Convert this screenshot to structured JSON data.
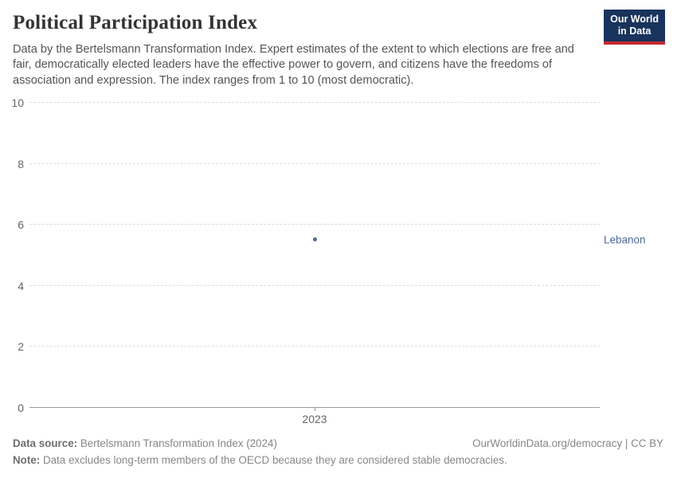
{
  "header": {
    "title": "Political Participation Index",
    "subtitle": "Data by the Bertelsmann Transformation Index. Expert estimates of the extent to which elections are free and fair, democratically elected leaders have the effective power to govern, and citizens have the freedoms of association and expression. The index ranges from 1 to 10 (most democratic).",
    "logo": {
      "line1": "Our World",
      "line2": "in Data",
      "background_color": "#18345d",
      "accent_color": "#c32a33"
    }
  },
  "chart_data": {
    "type": "scatter",
    "title": "Political Participation Index",
    "categories": [
      "2023"
    ],
    "series": [
      {
        "name": "Lebanon",
        "values": [
          5.5
        ],
        "color": "#4c6a9c"
      }
    ],
    "xlabel": "",
    "ylabel": "",
    "ylim": [
      0,
      10
    ],
    "yticks": [
      0,
      2,
      4,
      6,
      8,
      10
    ],
    "xticks": [
      "2023"
    ],
    "grid": "horizontal-dashed",
    "legend_position": "right-of-point",
    "axis_color": "#999999",
    "gridline_color": "#dcdcdc",
    "tick_label_color": "#666666"
  },
  "footer": {
    "source_label": "Data source:",
    "source_text": " Bertelsmann Transformation Index (2024)",
    "right_text": "OurWorldinData.org/democracy | CC BY",
    "note_label": "Note:",
    "note_text": " Data excludes long-term members of the OECD because they are considered stable democracies."
  }
}
